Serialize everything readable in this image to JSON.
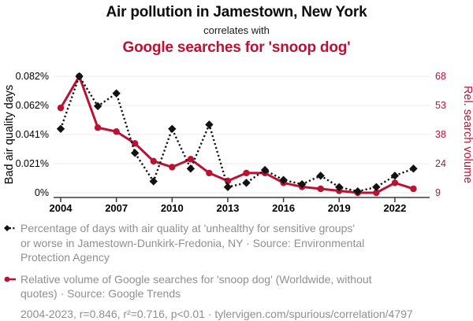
{
  "header": {
    "title_top": "Air pollution in Jamestown, New York",
    "connector": "correlates with",
    "title_bottom": "Google searches for 'snoop dog'"
  },
  "colors": {
    "red": "#bb1133",
    "black": "#121212",
    "grid": "#ebebeb",
    "axis": "#3a3a3a",
    "legend_gray": "#8f8f8f"
  },
  "chart_data": {
    "type": "line",
    "x": [
      2004,
      2005,
      2006,
      2007,
      2008,
      2009,
      2010,
      2011,
      2012,
      2013,
      2014,
      2015,
      2016,
      2017,
      2018,
      2019,
      2020,
      2021,
      2022,
      2023
    ],
    "x_tick_labels": [
      "2004",
      "2007",
      "2010",
      "2013",
      "2016",
      "2019",
      "2022"
    ],
    "series": [
      {
        "name": "Bad air quality days (% of days)",
        "axis": "left",
        "style": "dotted-diamond",
        "color_key": "black",
        "values": [
          0.045,
          0.082,
          0.061,
          0.07,
          0.028,
          0.008,
          0.045,
          0.017,
          0.048,
          0.004,
          0.007,
          0.016,
          0.009,
          0.006,
          0.012,
          0.004,
          0.001,
          0.004,
          0.012,
          0.017
        ]
      },
      {
        "name": "Google searches for 'snoop dog' (rel. volume)",
        "axis": "right",
        "style": "solid-circle",
        "color_key": "red",
        "values": [
          52,
          68,
          42,
          40,
          34,
          25,
          22,
          26,
          19,
          15,
          19,
          19,
          14,
          12,
          11,
          10,
          9,
          9,
          14,
          11
        ]
      }
    ],
    "left_axis": {
      "title": "Bad air quality days",
      "ticks": [
        "0%",
        "0.021%",
        "0.041%",
        "0.062%",
        "0.082%"
      ],
      "min": 0,
      "max": 0.082
    },
    "right_axis": {
      "title": "Rel. search volume",
      "ticks": [
        "9",
        "24",
        "38",
        "53",
        "68"
      ],
      "min": 9,
      "max": 68
    },
    "grid": true,
    "legend_position": "below"
  },
  "legend": {
    "series1_label": "Percentage of days with air quality at 'unhealthy for sensitive groups'\nor worse in Jamestown-Dunkirk-Fredonia, NY · Source: Environmental\nProtection Agency",
    "series2_label": "Relative volume of Google searches for 'snoop dog' (Worldwide, without\nquotes) · Source: Google Trends",
    "footer": "2004-2023, r=0.846, r²=0.716, p<0.01 · tylervigen.com/spurious/correlation/4797"
  }
}
